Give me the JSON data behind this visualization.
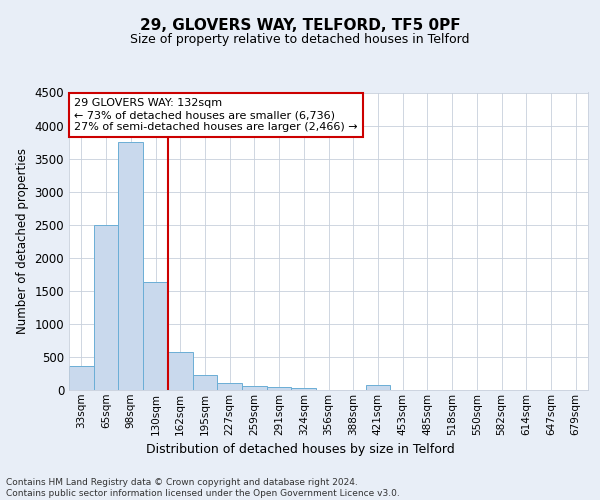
{
  "title1": "29, GLOVERS WAY, TELFORD, TF5 0PF",
  "title2": "Size of property relative to detached houses in Telford",
  "xlabel": "Distribution of detached houses by size in Telford",
  "ylabel": "Number of detached properties",
  "bar_labels": [
    "33sqm",
    "65sqm",
    "98sqm",
    "130sqm",
    "162sqm",
    "195sqm",
    "227sqm",
    "259sqm",
    "291sqm",
    "324sqm",
    "356sqm",
    "388sqm",
    "421sqm",
    "453sqm",
    "485sqm",
    "518sqm",
    "550sqm",
    "582sqm",
    "614sqm",
    "647sqm",
    "679sqm"
  ],
  "bar_values": [
    370,
    2500,
    3750,
    1640,
    580,
    230,
    110,
    65,
    40,
    30,
    0,
    0,
    70,
    0,
    0,
    0,
    0,
    0,
    0,
    0,
    0
  ],
  "bar_color": "#c9d9ed",
  "bar_edge_color": "#6baed6",
  "vline_color": "#cc0000",
  "ylim": [
    0,
    4500
  ],
  "yticks": [
    0,
    500,
    1000,
    1500,
    2000,
    2500,
    3000,
    3500,
    4000,
    4500
  ],
  "annotation_text": "29 GLOVERS WAY: 132sqm\n← 73% of detached houses are smaller (6,736)\n27% of semi-detached houses are larger (2,466) →",
  "annotation_box_color": "#ffffff",
  "annotation_box_edge": "#cc0000",
  "footer": "Contains HM Land Registry data © Crown copyright and database right 2024.\nContains public sector information licensed under the Open Government Licence v3.0.",
  "bg_color": "#e8eef7",
  "plot_bg_color": "#ffffff",
  "grid_color": "#c8d0dc"
}
